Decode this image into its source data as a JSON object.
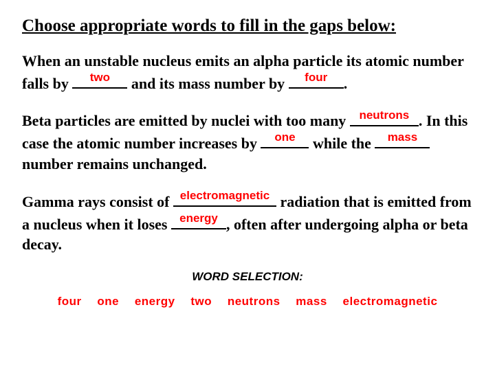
{
  "heading": "Choose appropriate words to fill in the gaps below:",
  "para1": {
    "t1": "When an unstable nucleus emits an alpha particle its atomic number falls by ",
    "b1": "two",
    "t2": " and its mass number by ",
    "b2": "four",
    "t3": "."
  },
  "para2": {
    "t1": "Beta particles are emitted by nuclei with too many ",
    "b1": "neutrons",
    "t2": ". In this case the atomic number increases by ",
    "b2": "one",
    "t3": " while the ",
    "b3": "mass",
    "t4": " number remains unchanged."
  },
  "para3": {
    "t1": "Gamma rays consist of ",
    "b1": "electromagnetic",
    "t2": " radiation that is emitted from a nucleus when it loses ",
    "b2": "energy",
    "t3": ", often after undergoing alpha or beta decay."
  },
  "wordSelection": {
    "label": "WORD SELECTION:",
    "words": [
      "four",
      "one",
      "energy",
      "two",
      "neutrons",
      "mass",
      "electromagnetic"
    ]
  },
  "style": {
    "answer_color": "#ff0000",
    "text_color": "#000000",
    "answer_font": "Arial",
    "body_font": "Times New Roman"
  }
}
